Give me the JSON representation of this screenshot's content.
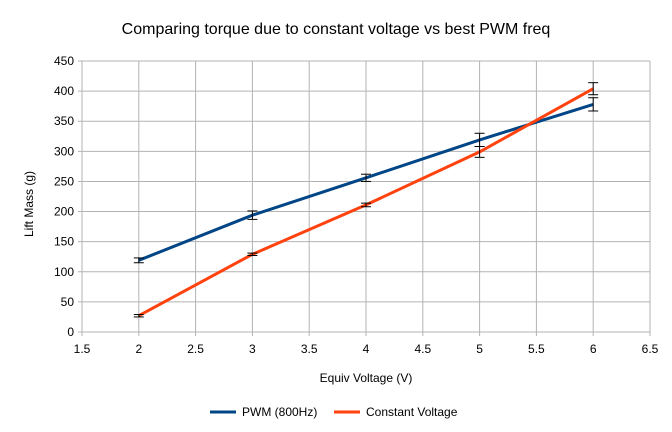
{
  "chart_data": {
    "type": "line",
    "title": "Comparing torque due to constant voltage vs best PWM freq",
    "xlabel": "Equiv Voltage (V)",
    "ylabel": "Lift Mass (g)",
    "xlim": [
      1.5,
      6.5
    ],
    "ylim": [
      0,
      450
    ],
    "x_ticks": [
      "1.5",
      "2",
      "2.5",
      "3",
      "3.5",
      "4",
      "4.5",
      "5",
      "5.5",
      "6",
      "6.5"
    ],
    "y_ticks": [
      "0",
      "50",
      "100",
      "150",
      "200",
      "250",
      "300",
      "350",
      "400",
      "450"
    ],
    "grid": true,
    "legend_position": "bottom",
    "series": [
      {
        "name": "PWM (800Hz)",
        "color": "#004586",
        "x": [
          2,
          3,
          4,
          5,
          6
        ],
        "y": [
          119,
          194,
          256,
          319,
          378
        ],
        "error": [
          4,
          7,
          6,
          11,
          11
        ]
      },
      {
        "name": "Constant Voltage",
        "color": "#ff420e",
        "x": [
          2,
          3,
          4,
          5,
          6
        ],
        "y": [
          27,
          129,
          211,
          299,
          404
        ],
        "error": [
          2,
          2,
          3,
          9,
          10
        ]
      }
    ]
  }
}
